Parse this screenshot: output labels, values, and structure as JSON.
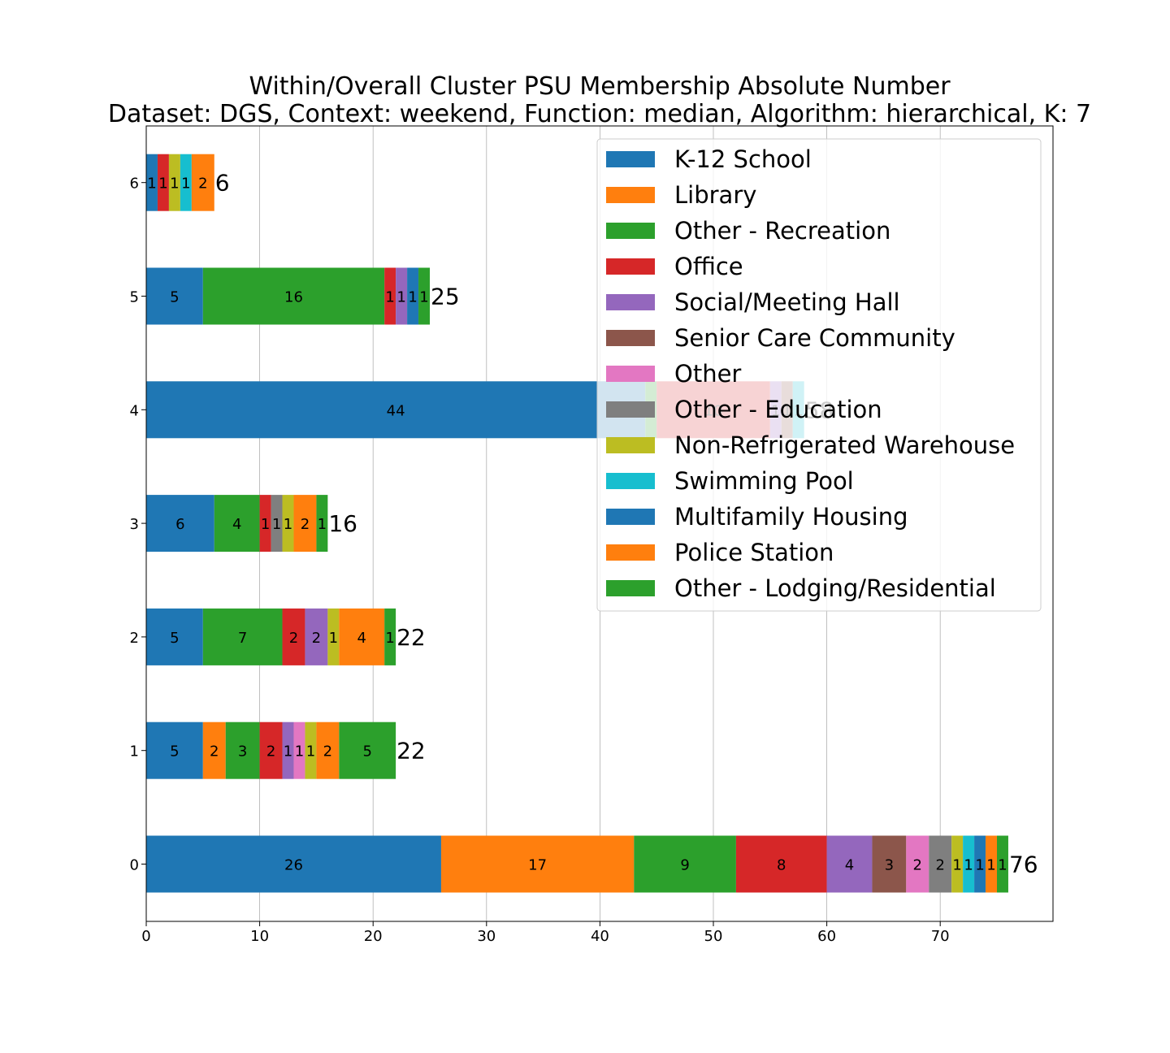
{
  "chart_data": {
    "type": "bar",
    "orientation": "horizontal",
    "stacked": true,
    "title": "Within/Overall Cluster PSU Membership Absolute Number",
    "subtitle": "Dataset: DGS, Context: weekend, Function: median, Algorithm: hierarchical, K: 7",
    "xlabel": "",
    "ylabel": "",
    "xlim": [
      0,
      80
    ],
    "xticks": [
      "0",
      "10",
      "20",
      "30",
      "40",
      "50",
      "60",
      "70"
    ],
    "xtick_values": [
      0,
      10,
      20,
      30,
      40,
      50,
      60,
      70
    ],
    "grid": "vertical",
    "legend_position": "top-right",
    "categories": [
      "0",
      "1",
      "2",
      "3",
      "4",
      "5",
      "6"
    ],
    "totals": [
      76,
      22,
      22,
      16,
      58,
      25,
      6
    ],
    "totals_labels": [
      "76",
      "22",
      "22",
      "16",
      "58",
      "25",
      "6"
    ],
    "series": [
      {
        "name": "K-12 School",
        "color": "#1f77b4",
        "values": [
          26,
          5,
          5,
          6,
          44,
          5,
          1
        ]
      },
      {
        "name": "Library",
        "color": "#ff7f0e",
        "values": [
          17,
          2,
          0,
          0,
          0,
          0,
          0
        ]
      },
      {
        "name": "Other - Recreation",
        "color": "#2ca02c",
        "values": [
          9,
          3,
          7,
          4,
          1,
          16,
          0
        ]
      },
      {
        "name": "Office",
        "color": "#d62728",
        "values": [
          8,
          2,
          2,
          1,
          10,
          1,
          1
        ]
      },
      {
        "name": "Social/Meeting Hall",
        "color": "#9467bd",
        "values": [
          4,
          1,
          2,
          0,
          1,
          1,
          0
        ]
      },
      {
        "name": "Senior Care Community",
        "color": "#8c564b",
        "values": [
          3,
          0,
          0,
          0,
          1,
          0,
          0
        ]
      },
      {
        "name": "Other",
        "color": "#e377c2",
        "values": [
          2,
          1,
          0,
          0,
          0,
          0,
          0
        ]
      },
      {
        "name": "Other - Education",
        "color": "#7f7f7f",
        "values": [
          2,
          0,
          0,
          1,
          0,
          0,
          0
        ]
      },
      {
        "name": "Non-Refrigerated Warehouse",
        "color": "#bcbd22",
        "values": [
          1,
          1,
          1,
          1,
          0,
          0,
          1
        ]
      },
      {
        "name": "Swimming Pool",
        "color": "#17becf",
        "values": [
          1,
          0,
          0,
          0,
          1,
          0,
          1
        ]
      },
      {
        "name": "Multifamily Housing",
        "color": "#1f77b4",
        "values": [
          1,
          0,
          0,
          0,
          0,
          1,
          0
        ]
      },
      {
        "name": "Police Station",
        "color": "#ff7f0e",
        "values": [
          1,
          2,
          4,
          2,
          0,
          0,
          2
        ]
      },
      {
        "name": "Other - Lodging/Residential",
        "color": "#2ca02c",
        "values": [
          1,
          5,
          1,
          1,
          0,
          1,
          0
        ]
      }
    ]
  }
}
